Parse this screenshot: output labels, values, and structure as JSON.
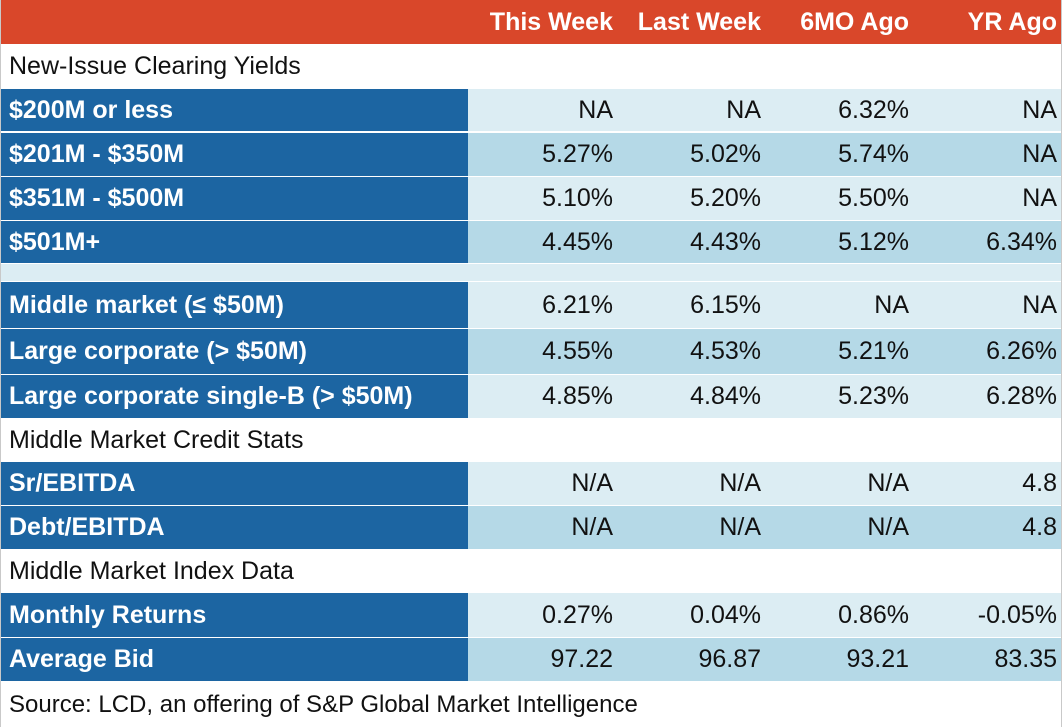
{
  "chart_data": {
    "type": "table",
    "columns": [
      "",
      "This Week",
      "Last Week",
      "6MO Ago",
      "YR Ago"
    ],
    "sections": [
      {
        "title": "New-Issue Clearing Yields",
        "rows": [
          {
            "label": "$200M or less",
            "values": [
              "NA",
              "NA",
              "6.32%",
              "NA"
            ]
          },
          {
            "label": "$201M - $350M",
            "values": [
              "5.27%",
              "5.02%",
              "5.74%",
              "NA"
            ]
          },
          {
            "label": "$351M - $500M",
            "values": [
              "5.10%",
              "5.20%",
              "5.50%",
              "NA"
            ]
          },
          {
            "label": "$501M+",
            "values": [
              "4.45%",
              "4.43%",
              "5.12%",
              "6.34%"
            ]
          }
        ]
      },
      {
        "title": "",
        "rows": [
          {
            "label": "Middle market (≤ $50M)",
            "values": [
              "6.21%",
              "6.15%",
              "NA",
              "NA"
            ]
          },
          {
            "label": "Large corporate (> $50M)",
            "values": [
              "4.55%",
              "4.53%",
              "5.21%",
              "6.26%"
            ]
          },
          {
            "label": "Large corporate single-B (> $50M)",
            "values": [
              "4.85%",
              "4.84%",
              "5.23%",
              "6.28%"
            ]
          }
        ]
      },
      {
        "title": "Middle Market Credit Stats",
        "rows": [
          {
            "label": "Sr/EBITDA",
            "values": [
              "N/A",
              "N/A",
              "N/A",
              "4.8"
            ]
          },
          {
            "label": "Debt/EBITDA",
            "values": [
              "N/A",
              "N/A",
              "N/A",
              "4.8"
            ]
          }
        ]
      },
      {
        "title": "Middle Market Index Data",
        "rows": [
          {
            "label": "Monthly Returns",
            "values": [
              "0.27%",
              "0.04%",
              "0.86%",
              "-0.05%"
            ]
          },
          {
            "label": "Average Bid",
            "values": [
              "97.22",
              "96.87",
              "93.21",
              "83.35"
            ]
          }
        ]
      }
    ],
    "source": "Source: LCD, an offering of S&P Global Market Intelligence"
  },
  "colors": {
    "header": "#d9472a",
    "label_fill": "#1c65a2",
    "row_light": "#dcedf3",
    "row_dark": "#b5d9e7"
  }
}
